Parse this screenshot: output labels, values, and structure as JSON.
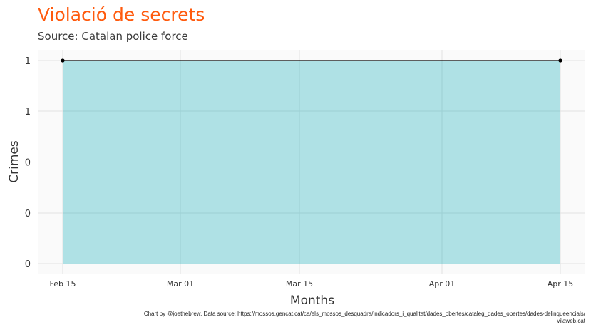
{
  "chart_data": {
    "type": "area",
    "title": "Violació de secrets",
    "subtitle": "Source: Catalan police force",
    "xlabel": "Months",
    "ylabel": "Crimes",
    "x": [
      "2020-02-15",
      "2020-04-15"
    ],
    "values": [
      1,
      1
    ],
    "x_ticks": [
      "Feb 15",
      "Mar 01",
      "Mar 15",
      "Apr 01",
      "Apr 15"
    ],
    "y_ticks": [
      "0",
      "0",
      "0",
      "1",
      "1"
    ],
    "ylim": [
      0,
      1
    ],
    "grid": true,
    "fill_color": "#abdfe4",
    "line_color": "#000000",
    "title_color": "#ff5a0d"
  },
  "caption": {
    "line1": "Chart by @joethebrew. Data source: https://mossos.gencat.cat/ca/els_mossos_desquadra/indicadors_i_qualitat/dades_obertes/cataleg_dades_obertes/dades-delinqueencials/",
    "line2": "vilaweb.cat"
  }
}
